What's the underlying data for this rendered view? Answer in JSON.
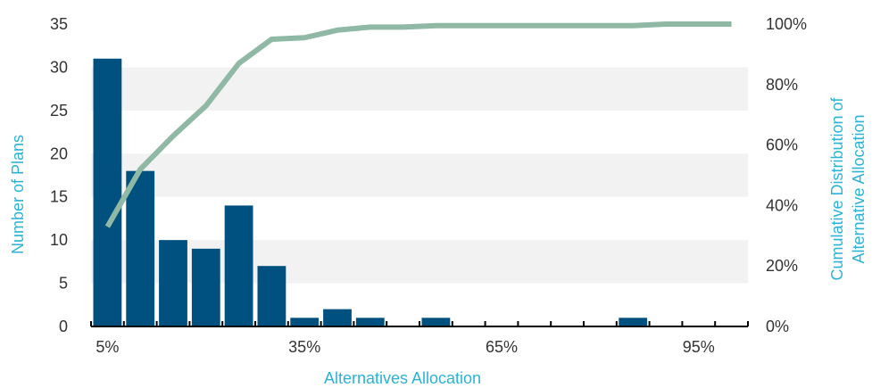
{
  "chart_data": {
    "type": "bar",
    "xlabel": "Alternatives Allocation",
    "ylabel": "Number of Plans",
    "y2label_lines": [
      "Cumulative Distribution of",
      "Alternative Allocation"
    ],
    "bins": [
      5,
      10,
      15,
      20,
      25,
      30,
      35,
      40,
      45,
      50,
      55,
      60,
      65,
      70,
      75,
      80,
      85,
      90,
      95,
      100
    ],
    "x_ticks": [
      {
        "value": 5,
        "label": "5%"
      },
      {
        "value": 35,
        "label": "35%"
      },
      {
        "value": 65,
        "label": "65%"
      },
      {
        "value": 95,
        "label": "95%"
      }
    ],
    "series": [
      {
        "type": "bar",
        "axis": "left",
        "values": [
          31,
          18,
          10,
          9,
          14,
          7,
          1,
          2,
          1,
          0,
          1,
          0,
          0,
          0,
          0,
          0,
          1,
          0,
          0,
          0
        ]
      },
      {
        "type": "line",
        "axis": "right",
        "values": [
          33,
          52,
          63,
          73,
          87,
          95,
          95.5,
          98,
          99,
          99,
          99.5,
          99.5,
          99.5,
          99.5,
          99.5,
          99.5,
          99.5,
          100,
          100,
          100
        ]
      }
    ],
    "ylim": [
      0,
      35
    ],
    "y_ticks": [
      "0",
      "5",
      "10",
      "15",
      "20",
      "25",
      "30",
      "35"
    ],
    "y2lim": [
      0,
      100
    ],
    "y2_ticks": [
      "0%",
      "20%",
      "40%",
      "60%",
      "80%",
      "100%"
    ],
    "colors": {
      "bar": "#00517f",
      "line": "#8fb8a5",
      "axis_title": "#2bb3d6",
      "band": "#f2f2f2"
    }
  }
}
